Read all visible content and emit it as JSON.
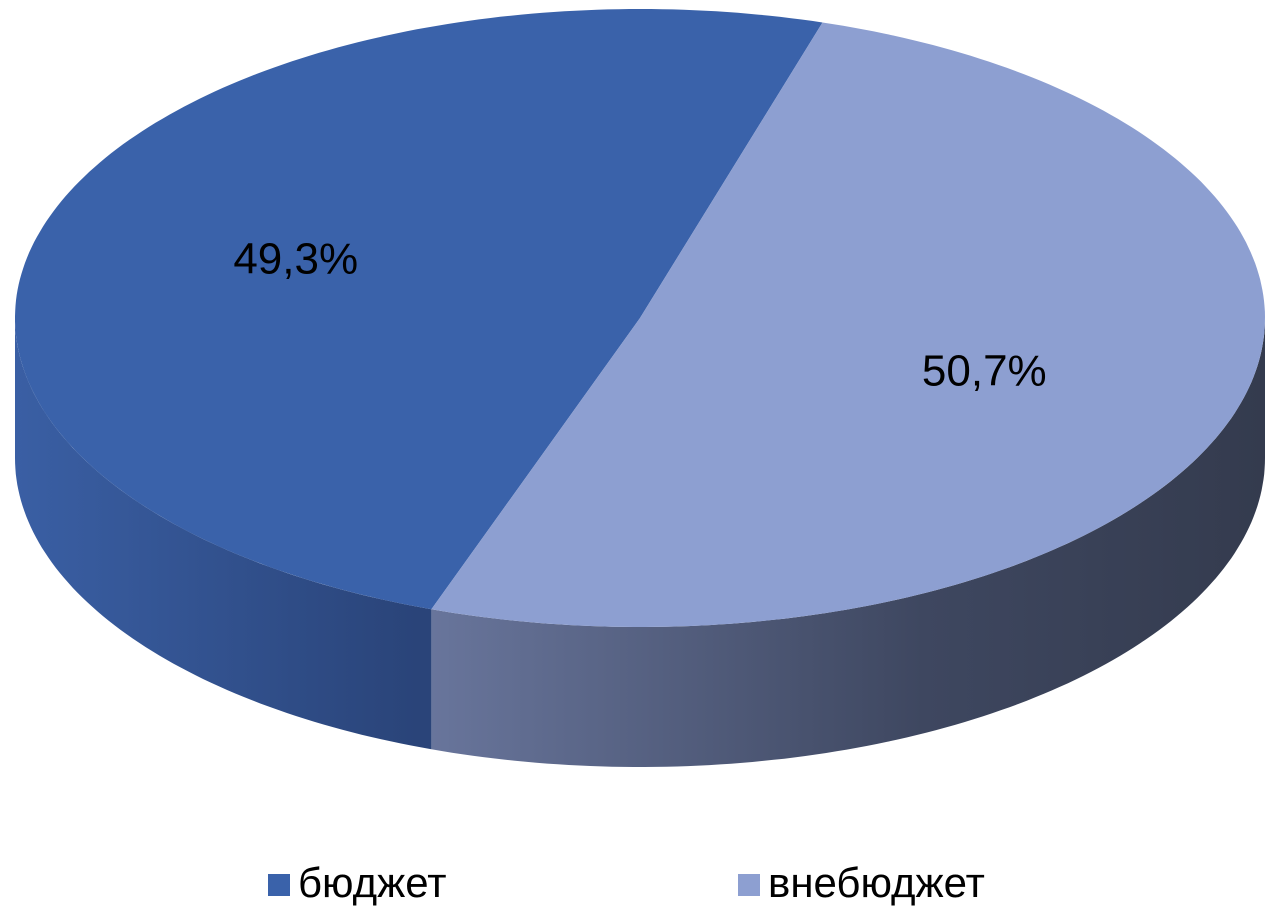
{
  "chart_data": {
    "type": "pie3d",
    "categories": [
      "бюджет",
      "внебюджет"
    ],
    "values": [
      49.3,
      50.7
    ],
    "value_labels": [
      "49,3%",
      "50,7%"
    ],
    "colors": [
      "#3a62aa",
      "#8d9fd1"
    ],
    "legend": "bottom"
  }
}
